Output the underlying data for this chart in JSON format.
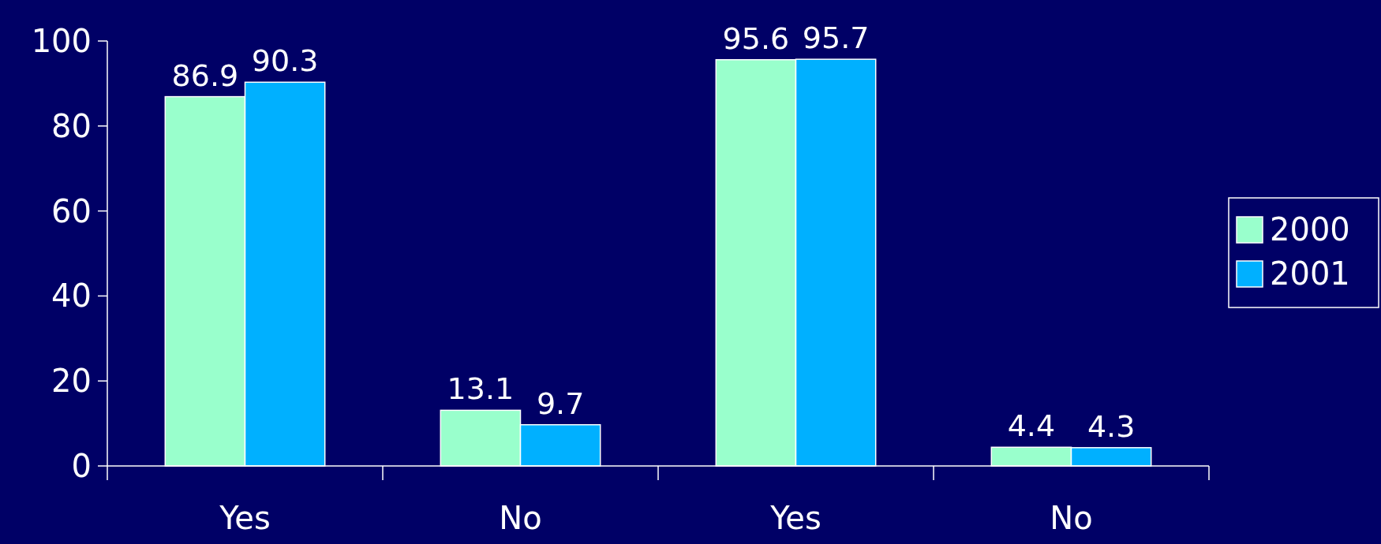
{
  "chart_data": {
    "type": "bar",
    "categories": [
      "Yes",
      "No",
      "Yes",
      "No"
    ],
    "series": [
      {
        "name": "2000",
        "color": "#99ffcc",
        "values": [
          86.9,
          13.1,
          95.6,
          4.4
        ]
      },
      {
        "name": "2001",
        "color": "#00b0ff",
        "values": [
          90.3,
          9.7,
          95.7,
          4.3
        ]
      }
    ],
    "ylim": [
      0,
      100
    ],
    "yticks": [
      0,
      20,
      40,
      60,
      80,
      100
    ],
    "data_labels": true,
    "legend": "right",
    "grid": false
  }
}
